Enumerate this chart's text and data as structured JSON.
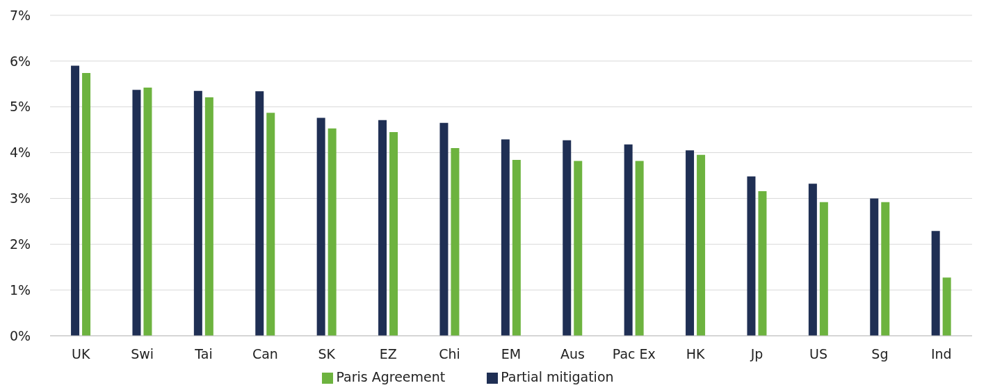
{
  "chart_data": {
    "type": "bar",
    "categories": [
      "UK",
      "Swi",
      "Tai",
      "Can",
      "SK",
      "EZ",
      "Chi",
      "EM",
      "Aus",
      "Pac Ex",
      "HK",
      "Jp",
      "US",
      "Sg",
      "Ind"
    ],
    "series": [
      {
        "name": "Partial mitigation",
        "color": "#1f2f54",
        "values": [
          5.9,
          5.37,
          5.35,
          5.34,
          4.76,
          4.71,
          4.65,
          4.29,
          4.27,
          4.18,
          4.05,
          3.48,
          3.32,
          3.0,
          2.29
        ]
      },
      {
        "name": "Paris Agreement",
        "color": "#6db33f",
        "values": [
          5.74,
          5.42,
          5.21,
          4.87,
          4.53,
          4.45,
          4.1,
          3.84,
          3.82,
          3.82,
          3.95,
          3.16,
          2.92,
          2.92,
          1.27
        ]
      }
    ],
    "ylim": [
      0,
      7
    ],
    "yticks": [
      {
        "value": 0,
        "label": "0%"
      },
      {
        "value": 1,
        "label": "1%"
      },
      {
        "value": 2,
        "label": "2%"
      },
      {
        "value": 3,
        "label": "3%"
      },
      {
        "value": 4,
        "label": "4%"
      },
      {
        "value": 5,
        "label": "5%"
      },
      {
        "value": 6,
        "label": "6%"
      },
      {
        "value": 7,
        "label": "7%"
      }
    ],
    "grid": "y",
    "legend": "bottom"
  }
}
